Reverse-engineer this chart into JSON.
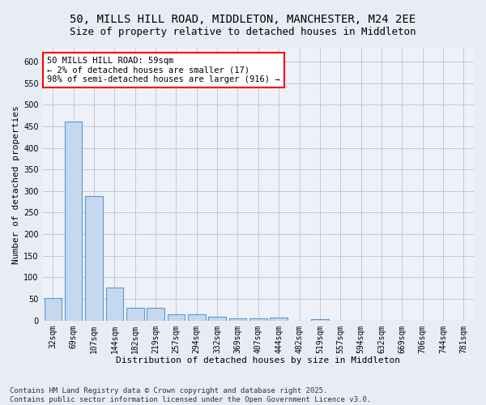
{
  "title_line1": "50, MILLS HILL ROAD, MIDDLETON, MANCHESTER, M24 2EE",
  "title_line2": "Size of property relative to detached houses in Middleton",
  "xlabel": "Distribution of detached houses by size in Middleton",
  "ylabel": "Number of detached properties",
  "categories": [
    "32sqm",
    "69sqm",
    "107sqm",
    "144sqm",
    "182sqm",
    "219sqm",
    "257sqm",
    "294sqm",
    "332sqm",
    "369sqm",
    "407sqm",
    "444sqm",
    "482sqm",
    "519sqm",
    "557sqm",
    "594sqm",
    "632sqm",
    "669sqm",
    "706sqm",
    "744sqm",
    "781sqm"
  ],
  "values": [
    52,
    462,
    288,
    76,
    30,
    30,
    14,
    14,
    8,
    5,
    5,
    7,
    0,
    4,
    0,
    0,
    0,
    0,
    0,
    0,
    0
  ],
  "bar_color": "#c5d8ed",
  "bar_edge_color": "#5b9bd5",
  "annotation_box_text": "50 MILLS HILL ROAD: 59sqm\n← 2% of detached houses are smaller (17)\n98% of semi-detached houses are larger (916) →",
  "ylim": [
    0,
    630
  ],
  "yticks": [
    0,
    50,
    100,
    150,
    200,
    250,
    300,
    350,
    400,
    450,
    500,
    550,
    600
  ],
  "grid_color": "#c0c8d8",
  "bg_color": "#e8edf5",
  "plot_bg_color": "#eef1f8",
  "footnote": "Contains HM Land Registry data © Crown copyright and database right 2025.\nContains public sector information licensed under the Open Government Licence v3.0.",
  "title_fontsize": 10,
  "subtitle_fontsize": 9,
  "axis_label_fontsize": 8,
  "tick_fontsize": 7,
  "annotation_fontsize": 7.5,
  "footnote_fontsize": 6.5
}
